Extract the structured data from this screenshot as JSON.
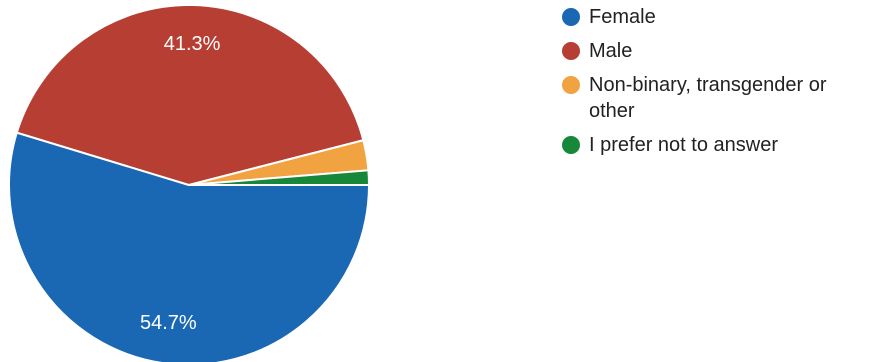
{
  "chart_data": {
    "type": "pie",
    "slices": [
      {
        "name": "Female",
        "value": 54.7,
        "label": "54.7%",
        "color": "#1a68b4"
      },
      {
        "name": "Male",
        "value": 41.3,
        "label": "41.3%",
        "color": "#b63e32"
      },
      {
        "name": "Non-binary, transgender or other",
        "value": 2.7,
        "label": "",
        "color": "#f0a340"
      },
      {
        "name": "I prefer not to answer",
        "value": 1.3,
        "label": "",
        "color": "#17883a"
      }
    ],
    "legend_position": "right"
  }
}
